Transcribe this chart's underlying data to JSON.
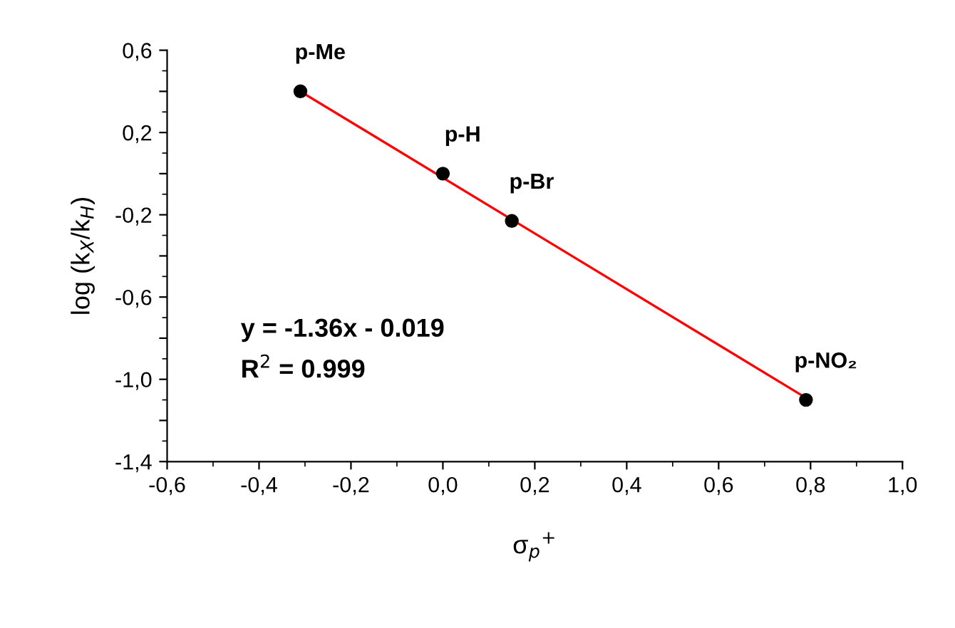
{
  "chart_data": {
    "type": "scatter",
    "xlabel": "σ$_{p}$$^{+}$",
    "ylabel": "log (k$_{X}$/k$_{H}$)",
    "xlim": [
      -0.6,
      1.0
    ],
    "ylim": [
      -1.4,
      0.6
    ],
    "xticks": [
      {
        "value": -0.6,
        "label": "-0,6"
      },
      {
        "value": -0.4,
        "label": "-0,4"
      },
      {
        "value": -0.2,
        "label": "-0,2"
      },
      {
        "value": 0.0,
        "label": "0,0"
      },
      {
        "value": 0.2,
        "label": "0,2"
      },
      {
        "value": 0.4,
        "label": "0,4"
      },
      {
        "value": 0.6,
        "label": "0,6"
      },
      {
        "value": 0.8,
        "label": "0,8"
      },
      {
        "value": 1.0,
        "label": "1,0"
      }
    ],
    "yticks": [
      {
        "value": -1.4,
        "label": "-1,4"
      },
      {
        "value": -1.2,
        "label": null
      },
      {
        "value": -1.0,
        "label": "-1,0"
      },
      {
        "value": -0.8,
        "label": null
      },
      {
        "value": -0.6,
        "label": "-0,6"
      },
      {
        "value": -0.4,
        "label": null
      },
      {
        "value": -0.2,
        "label": "-0,2"
      },
      {
        "value": 0.0,
        "label": null
      },
      {
        "value": 0.2,
        "label": "0,2"
      },
      {
        "value": 0.4,
        "label": null
      },
      {
        "value": 0.6,
        "label": "0,6"
      }
    ],
    "grid": false,
    "legend": false,
    "series": [
      {
        "type": "line",
        "color": "#ff0000",
        "x": [
          -0.31,
          0.79
        ],
        "values": [
          0.4,
          -1.09
        ],
        "marker": "none",
        "line_style": "solid"
      },
      {
        "color": "#000000",
        "x": [
          -0.31,
          0.0,
          0.15,
          0.79
        ],
        "values": [
          0.4,
          0.0,
          -0.23,
          -1.1
        ],
        "marker": "circle"
      }
    ],
    "annotations": [
      {
        "text": "p-Me",
        "x": -0.31,
        "y": 0.4
      },
      {
        "text": "p-H",
        "x": 0.0,
        "y": 0.0
      },
      {
        "text": "p-Br",
        "x": 0.15,
        "y": -0.23
      },
      {
        "text": "p-NO₂",
        "x": 0.79,
        "y": -1.1
      },
      "y = -1.36x - 0.019",
      "R$^{2}$ = 0.999"
    ]
  }
}
